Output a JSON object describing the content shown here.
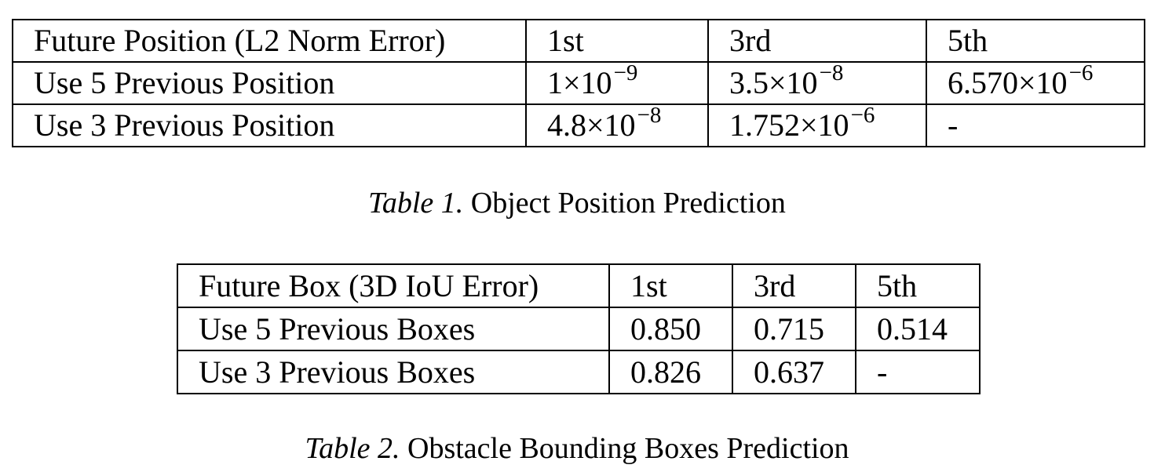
{
  "table1": {
    "headers": [
      "Future Position (L2 Norm Error)",
      "1st",
      "3rd",
      "5th"
    ],
    "rows": [
      {
        "label": "Use 5 Previous Position",
        "cells": [
          {
            "mant": "1×10",
            "exp": "−9"
          },
          {
            "mant": "3.5×10",
            "exp": "−8"
          },
          {
            "mant": "6.570×10",
            "exp": "−6"
          }
        ]
      },
      {
        "label": "Use 3 Previous Position",
        "cells": [
          {
            "mant": "4.8×10",
            "exp": "−8"
          },
          {
            "mant": "1.752×10",
            "exp": "−6"
          },
          {
            "mant": "-",
            "exp": ""
          }
        ]
      }
    ],
    "caption_label": "Table 1.",
    "caption_text": "Object Position Prediction"
  },
  "table2": {
    "headers": [
      "Future Box (3D IoU Error)",
      "1st",
      "3rd",
      "5th"
    ],
    "rows": [
      {
        "label": "Use 5 Previous Boxes",
        "cells": [
          "0.850",
          "0.715",
          "0.514"
        ]
      },
      {
        "label": "Use 3 Previous Boxes",
        "cells": [
          "0.826",
          "0.637",
          "-"
        ]
      }
    ],
    "caption_label": "Table 2.",
    "caption_text": "Obstacle Bounding Boxes Prediction"
  }
}
